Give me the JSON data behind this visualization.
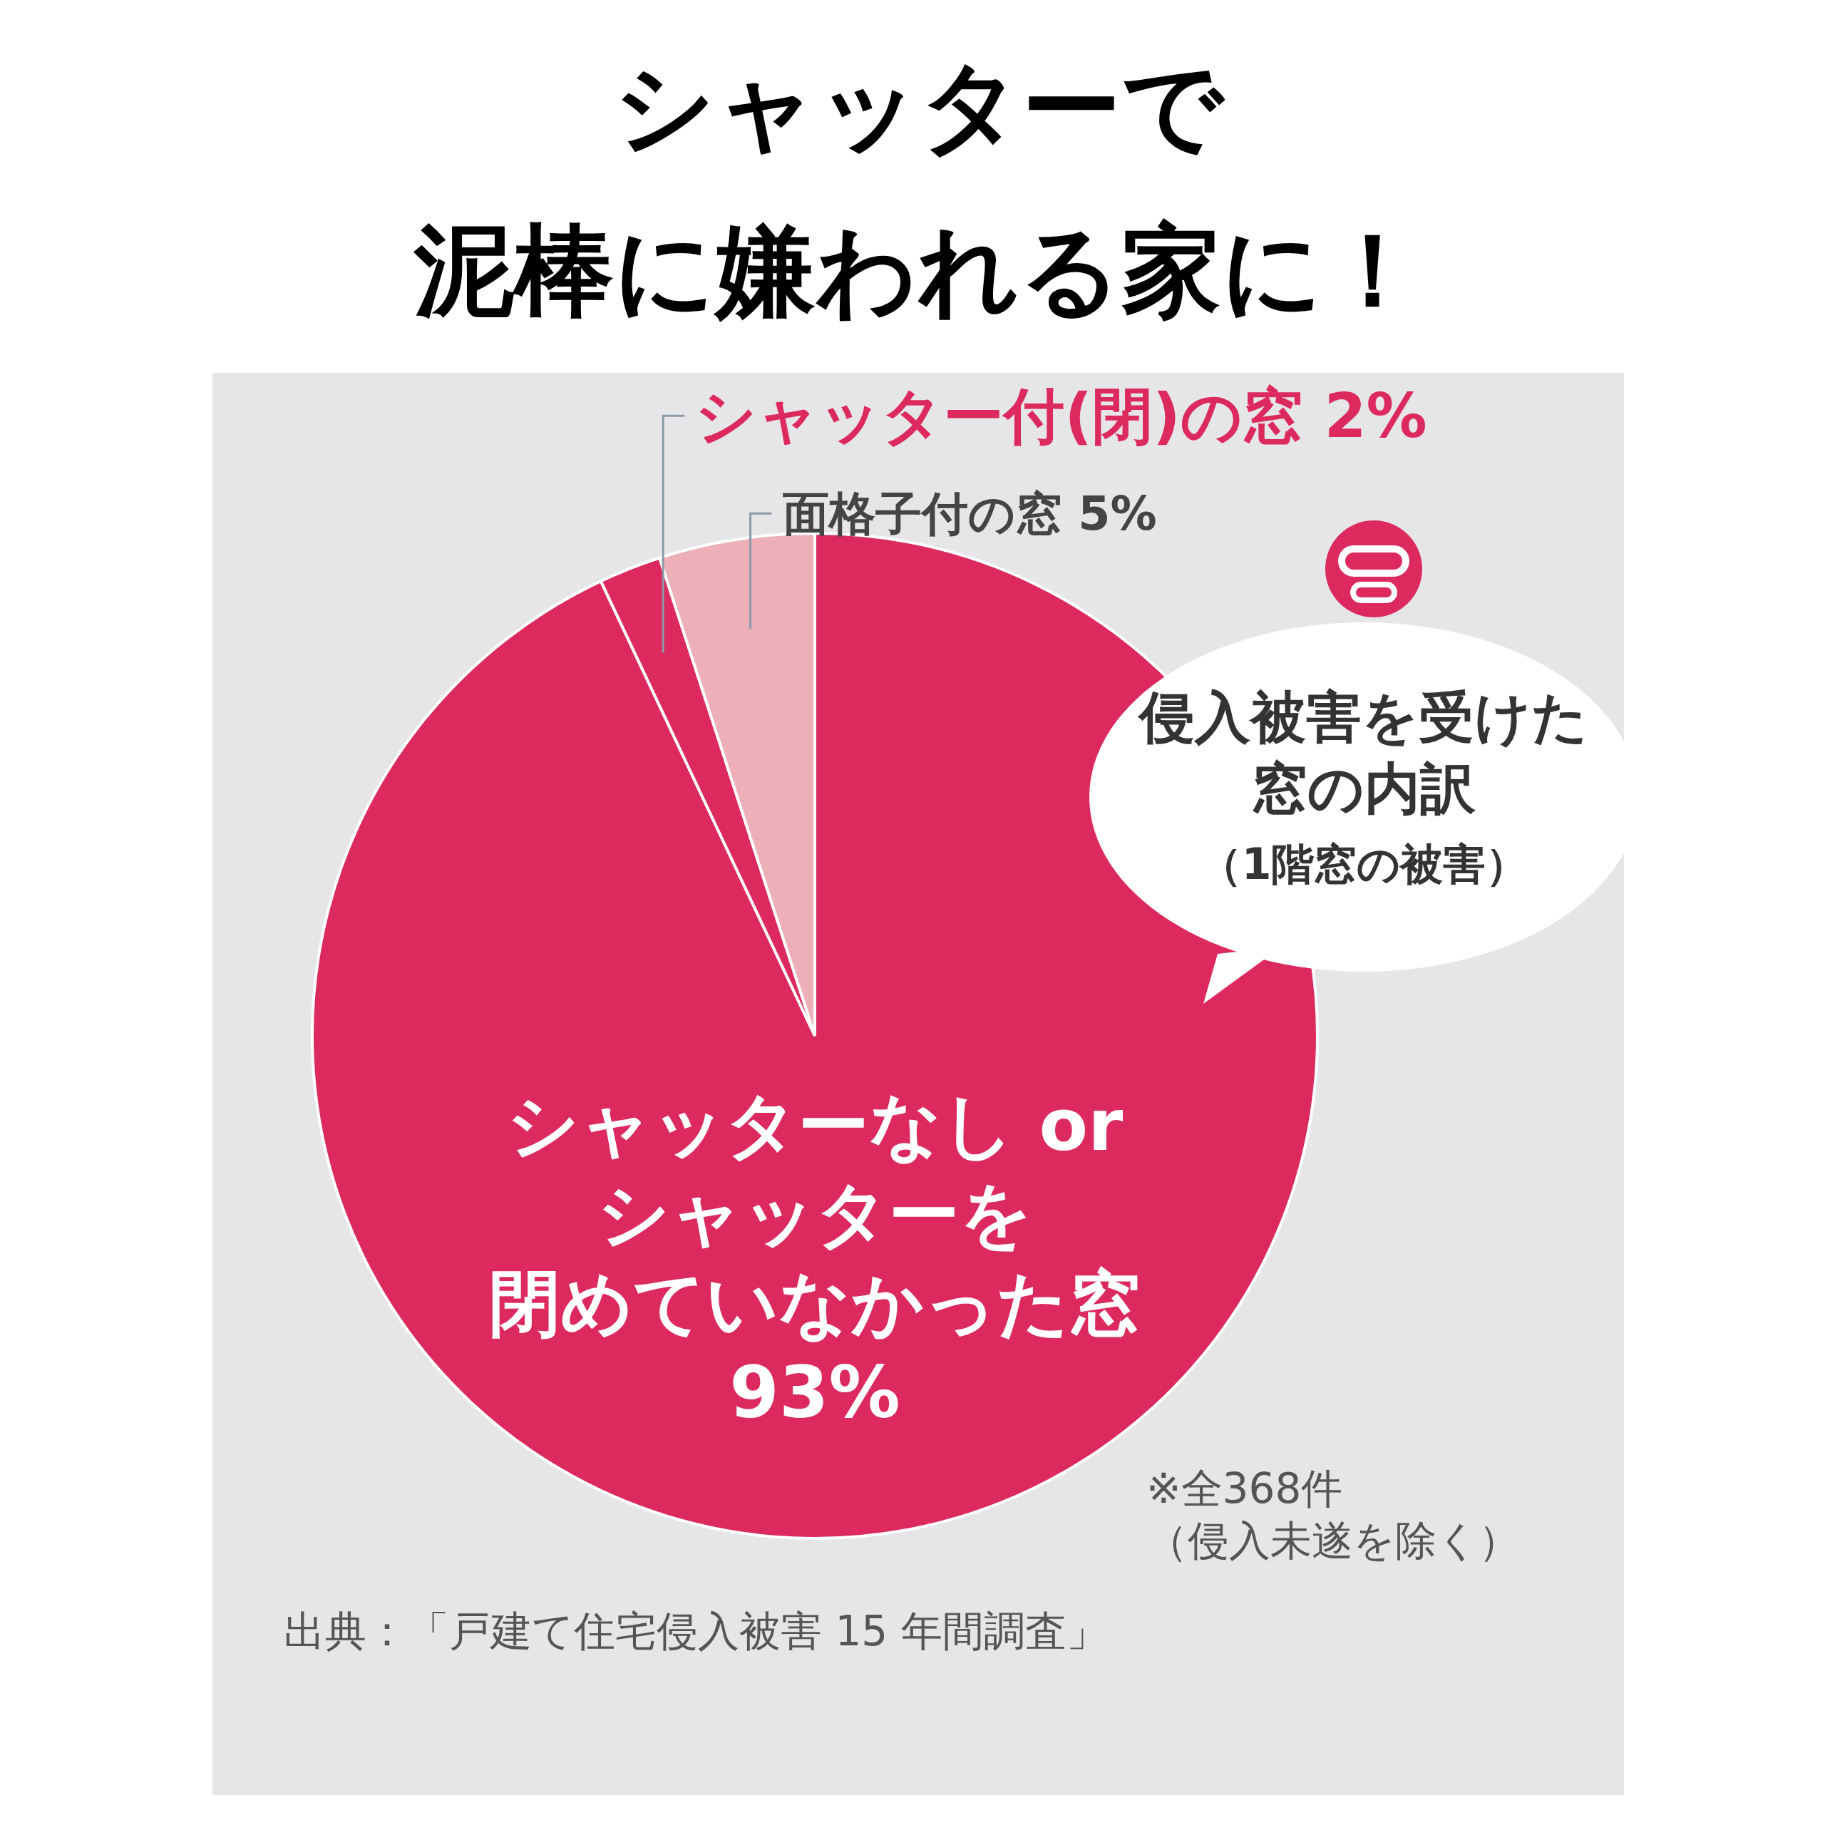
{
  "chart_data": {
    "type": "pie",
    "title": "シャッターで泥棒に嫌われる家に！",
    "subtitle": "侵入被害を受けた窓の内訳（1階窓の被害）",
    "categories": [
      "シャッターなし or シャッターを閉めていなかった窓",
      "シャッター付(閉)の窓",
      "面格子付の窓"
    ],
    "values": [
      93,
      2,
      5
    ],
    "value_labels": [
      "93%",
      "2%",
      "5%"
    ],
    "colors": [
      "#dc2a5f",
      "#dc2a5f",
      "#eeb0b8"
    ],
    "annotations": [
      "※全368件（侵入未遂を除く）",
      "出典：「戸建て住宅侵入被害 15 年間調査」"
    ]
  }
}
